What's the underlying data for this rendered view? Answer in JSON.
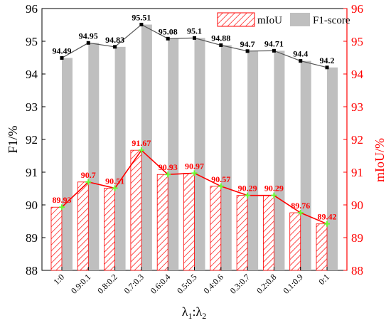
{
  "chart_data": {
    "type": "bar",
    "categories": [
      "1:0",
      "0.9:0.1",
      "0.8:0.2",
      "0.7:0.3",
      "0.6:0.4",
      "0.5:0.5",
      "0.4:0.6",
      "0.3:0.7",
      "0.2:0.8",
      "0.1:0.9",
      "0:1"
    ],
    "series": [
      {
        "name": "mIoU",
        "axis": "right",
        "style": "red diagonal hatched bars with red line and green point markers",
        "values": [
          89.93,
          90.7,
          90.51,
          91.67,
          90.93,
          90.97,
          90.57,
          90.29,
          90.29,
          89.76,
          89.42
        ]
      },
      {
        "name": "F1-score",
        "axis": "left",
        "style": "grey bars with dark grey line and black square markers",
        "values": [
          94.49,
          94.95,
          94.83,
          95.51,
          95.08,
          95.1,
          94.88,
          94.7,
          94.71,
          94.4,
          94.2
        ]
      }
    ],
    "xlabel_main": "λ",
    "xlabel_sub1": "1",
    "xlabel_colon": ":λ",
    "xlabel_sub2": "2",
    "ylabel_left": "F1/%",
    "ylabel_right": "mIoU/%",
    "ylim_left": [
      88,
      96
    ],
    "ylim_right": [
      88,
      96
    ],
    "yticks": [
      88,
      89,
      90,
      91,
      92,
      93,
      94,
      95,
      96
    ],
    "legend_position": "top-right",
    "grid": false,
    "colors": {
      "miou": "#ff0000",
      "miou_marker": "#66ff33",
      "f1_bar": "#bfbfbf",
      "f1_line": "#555555",
      "f1_marker": "#000000"
    }
  }
}
